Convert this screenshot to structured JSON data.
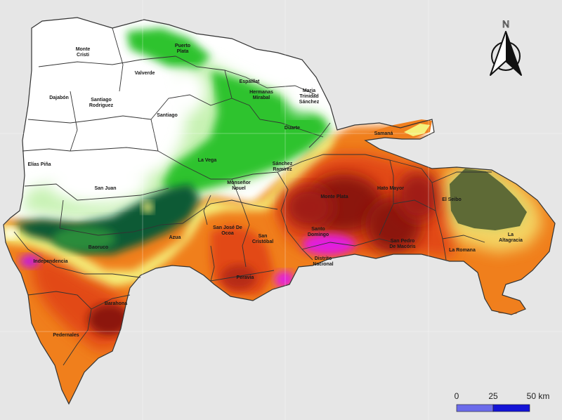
{
  "north_arrow": {
    "letter": "N"
  },
  "scale_bar": {
    "ticks": [
      "0",
      "25",
      "50 km"
    ],
    "colors": [
      "#6b6bea",
      "#1414d6"
    ]
  },
  "colors": {
    "background": "#e6e6e6",
    "white": "#ffffff",
    "light_green": "#c8f2b4",
    "green": "#2fc32f",
    "dark_green": "#0f5a35",
    "yellow": "#f5f07a",
    "orange": "#f07f1e",
    "red_orange": "#e24a12",
    "dark_red": "#8c1410",
    "magenta": "#e21ce0",
    "olive": "#5e6a36"
  },
  "provinces": [
    {
      "id": "monte-cristi",
      "lines": [
        "Monte",
        "Cristi"
      ]
    },
    {
      "id": "puerto-plata",
      "lines": [
        "Puerto",
        "Plata"
      ]
    },
    {
      "id": "valverde",
      "lines": [
        "Valverde"
      ]
    },
    {
      "id": "espaillat",
      "lines": [
        "Espaillat"
      ]
    },
    {
      "id": "hermanas-mirabal",
      "lines": [
        "Hermanas",
        "Mirabal"
      ]
    },
    {
      "id": "maria-trinidad-sanchez",
      "lines": [
        "Maria",
        "Trinidad",
        "Sánchez"
      ]
    },
    {
      "id": "dajabon",
      "lines": [
        "Dajabón"
      ]
    },
    {
      "id": "santiago-rodriguez",
      "lines": [
        "Santiago",
        "Rodriguez"
      ]
    },
    {
      "id": "santiago",
      "lines": [
        "Santiago"
      ]
    },
    {
      "id": "duarte",
      "lines": [
        "Duarte"
      ]
    },
    {
      "id": "samana",
      "lines": [
        "Samaná"
      ]
    },
    {
      "id": "elias-pina",
      "lines": [
        "Elías Piña"
      ]
    },
    {
      "id": "la-vega",
      "lines": [
        "La Vega"
      ]
    },
    {
      "id": "sanchez-ramirez",
      "lines": [
        "Sánchez",
        "Ramírez"
      ]
    },
    {
      "id": "san-juan",
      "lines": [
        "San Juan"
      ]
    },
    {
      "id": "monsenor-nouel",
      "lines": [
        "Monseñor",
        "Nouel"
      ]
    },
    {
      "id": "monte-plata",
      "lines": [
        "Monte Plata"
      ]
    },
    {
      "id": "hato-mayor",
      "lines": [
        "Hato Mayor"
      ]
    },
    {
      "id": "el-seibo",
      "lines": [
        "El Seibo"
      ]
    },
    {
      "id": "san-jose-de-ocoa",
      "lines": [
        "San José De",
        "Ocoa"
      ]
    },
    {
      "id": "azua",
      "lines": [
        "Azua"
      ]
    },
    {
      "id": "san-cristobal",
      "lines": [
        "San",
        "Cristóbal"
      ]
    },
    {
      "id": "santo-domingo",
      "lines": [
        "Santo",
        "Domingo"
      ]
    },
    {
      "id": "san-pedro-de-macoris",
      "lines": [
        "San Pedro",
        "De Macóris"
      ]
    },
    {
      "id": "la-altagracia",
      "lines": [
        "La",
        "Altagracia"
      ]
    },
    {
      "id": "baoruco",
      "lines": [
        "Baoruco"
      ]
    },
    {
      "id": "independencia",
      "lines": [
        "Independencia"
      ]
    },
    {
      "id": "distrito-nacional",
      "lines": [
        "Distrito",
        "Nacional"
      ]
    },
    {
      "id": "la-romana",
      "lines": [
        "La Romana"
      ]
    },
    {
      "id": "peravia",
      "lines": [
        "Peravia"
      ]
    },
    {
      "id": "barahona",
      "lines": [
        "Barahona"
      ]
    },
    {
      "id": "pedernales",
      "lines": [
        "Pedernales"
      ]
    }
  ]
}
